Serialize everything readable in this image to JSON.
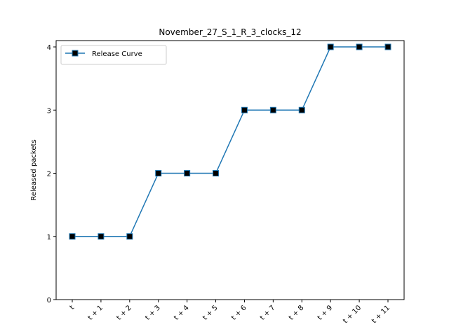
{
  "chart_data": {
    "type": "line",
    "title": "November_27_S_1_R_3_clocks_12",
    "xlabel": "",
    "ylabel": "Released packets",
    "categories": [
      "t",
      "t + 1",
      "t + 2",
      "t + 3",
      "t + 4",
      "t + 5",
      "t + 6",
      "t + 7",
      "t + 8",
      "t + 9",
      "t + 10",
      "t + 11"
    ],
    "y_ticks": [
      0,
      1,
      2,
      3,
      4
    ],
    "ylim": [
      0,
      4.1
    ],
    "grid": false,
    "legend": "top-left",
    "series": [
      {
        "name": "Release Curve",
        "values": [
          1,
          1,
          1,
          2,
          2,
          2,
          3,
          3,
          3,
          4,
          4,
          4
        ],
        "line_color": "#1f77b4",
        "marker": "square",
        "marker_color": "#000000"
      }
    ]
  }
}
